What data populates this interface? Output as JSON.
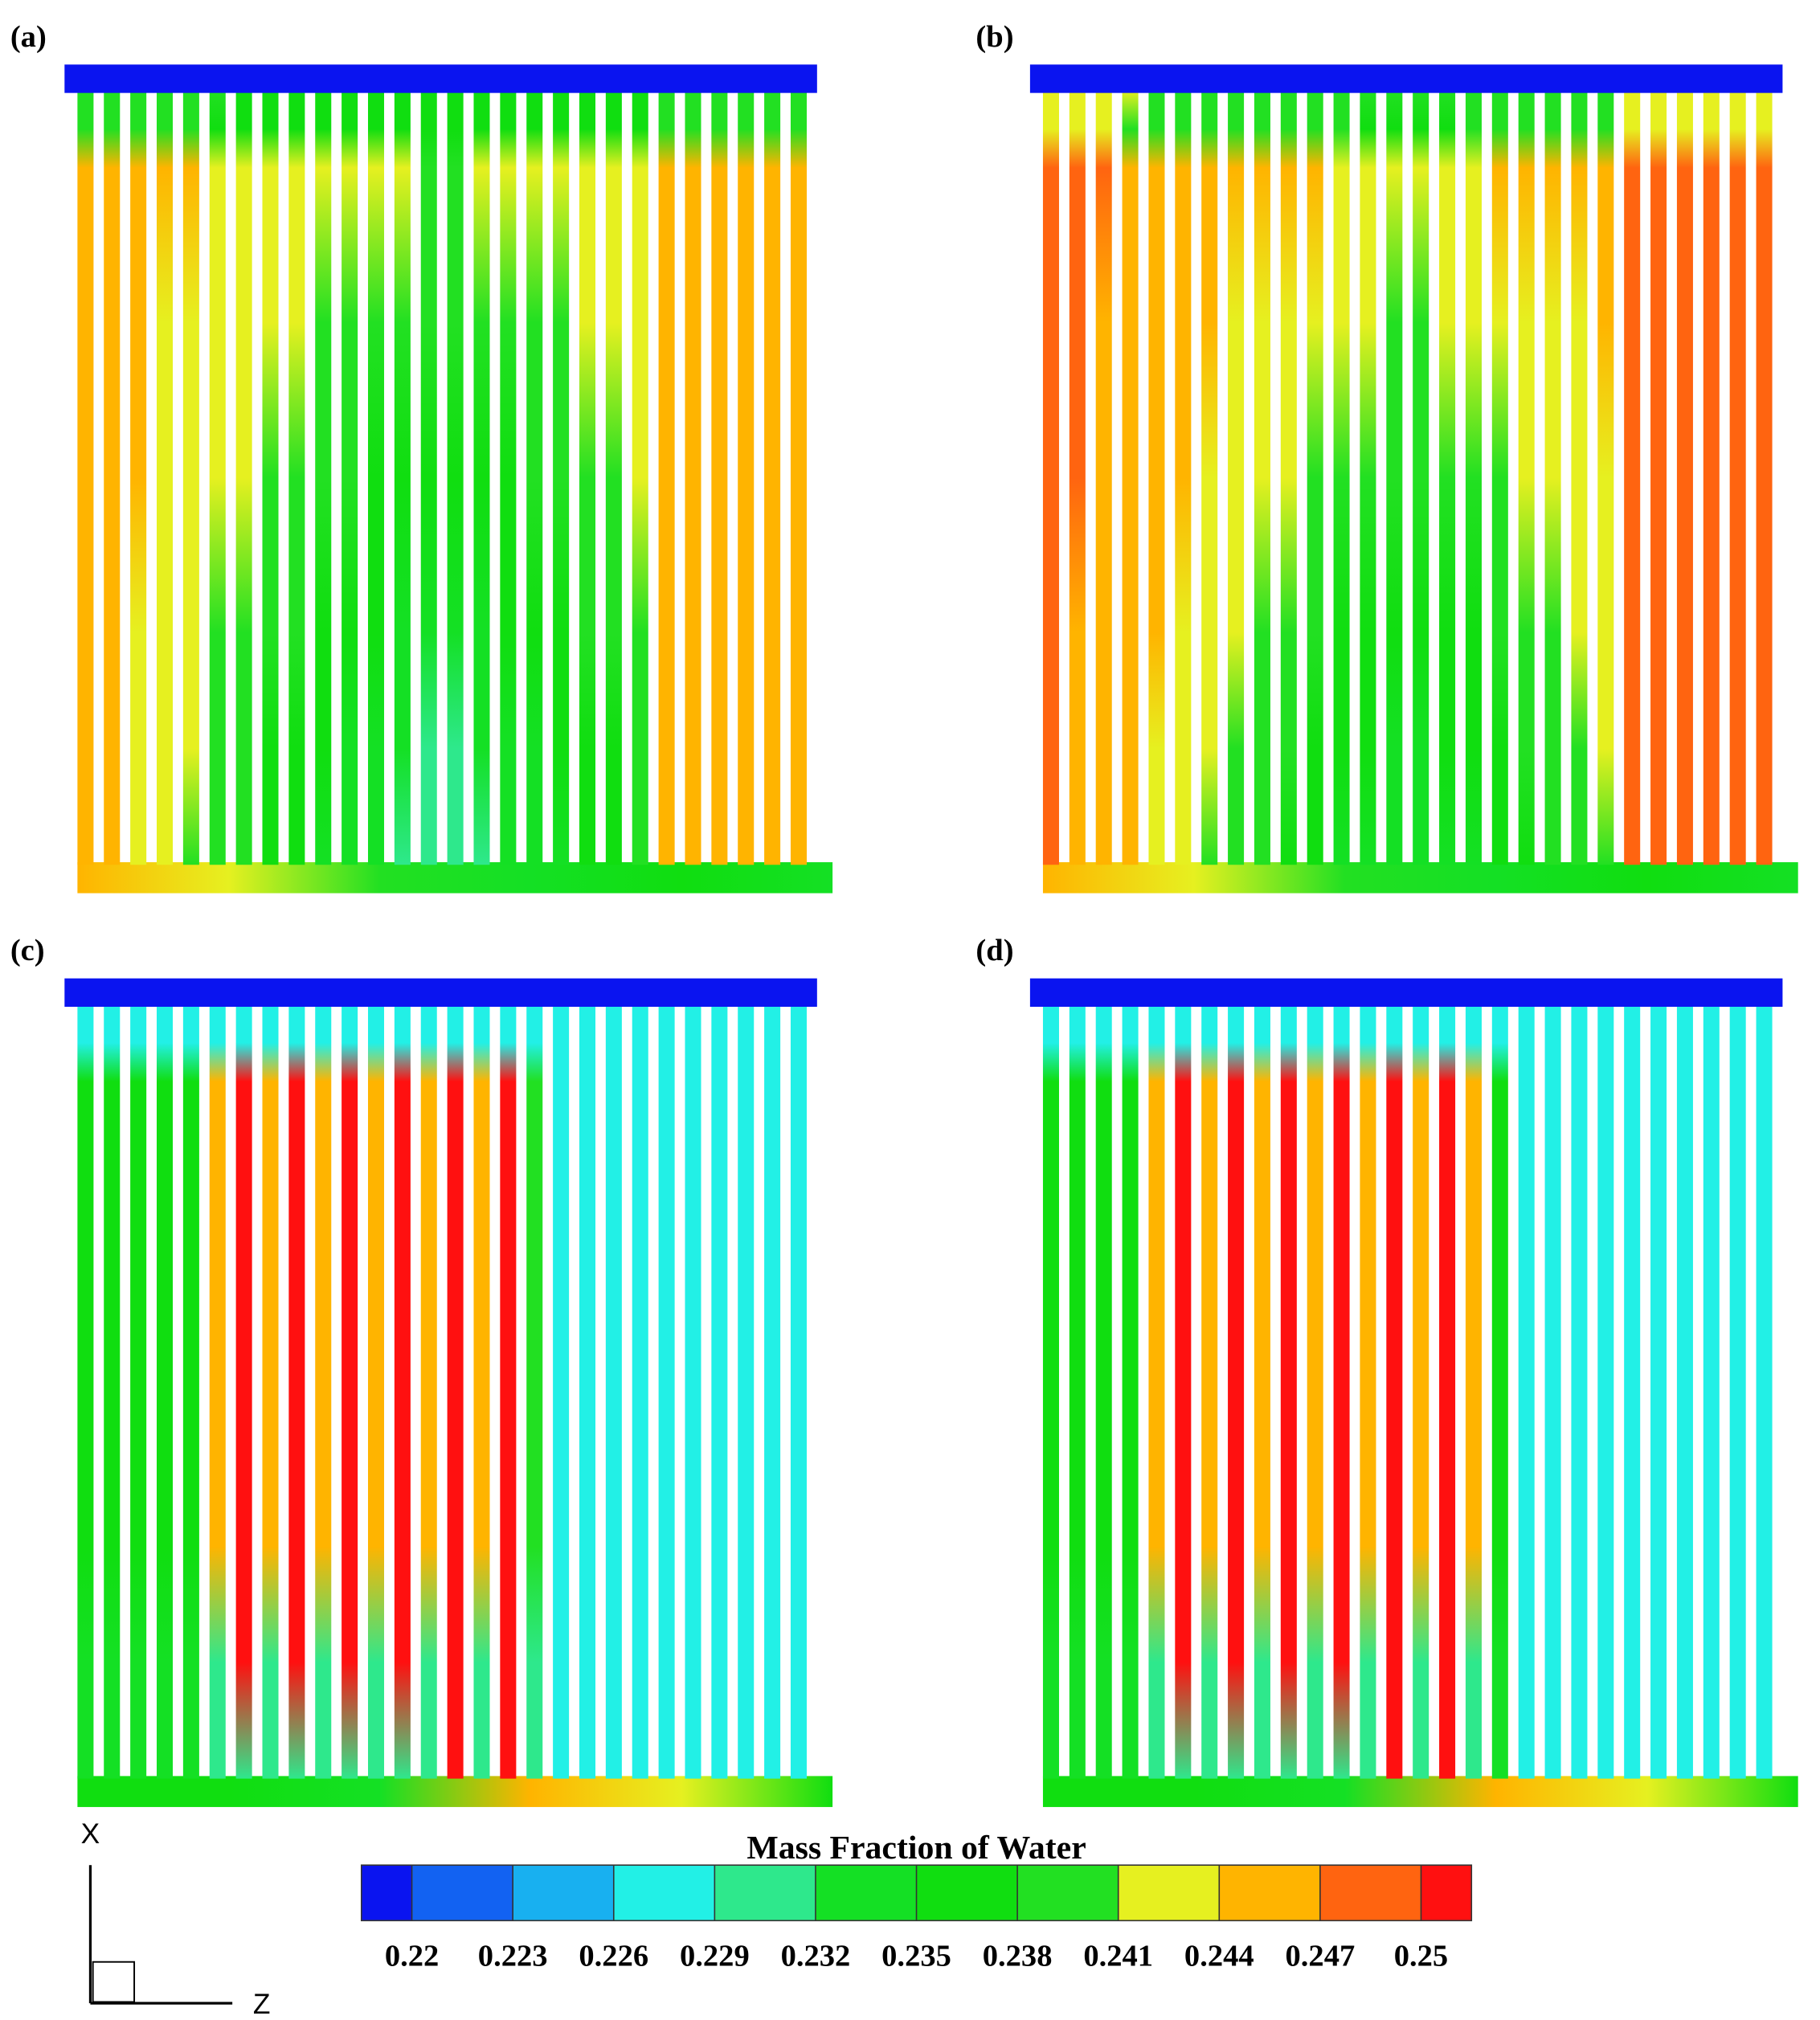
{
  "panels": [
    {
      "label": "(a)"
    },
    {
      "label": "(b)"
    },
    {
      "label": "(c)"
    },
    {
      "label": "(d)"
    }
  ],
  "colorbar": {
    "title": "Mass Fraction of Water",
    "ticks": [
      0.22,
      0.223,
      0.226,
      0.229,
      0.232,
      0.235,
      0.238,
      0.241,
      0.244,
      0.247,
      0.25
    ],
    "colors": [
      "#0a14f0",
      "#1262f2",
      "#18b0f0",
      "#22f0e6",
      "#2ee88c",
      "#14e024",
      "#10de10",
      "#22e022",
      "#e6f020",
      "#ffb400",
      "#ff6410",
      "#ff1010"
    ]
  },
  "axes": {
    "vertical": "X",
    "horizontal": "Z"
  }
}
